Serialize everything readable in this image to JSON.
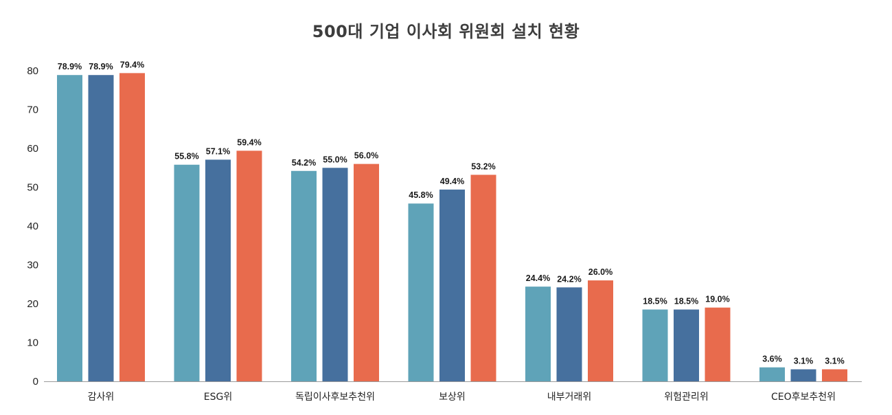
{
  "title": "500대 기업 이사회 위원회 설치 현황",
  "chart_data": {
    "type": "bar",
    "title": "500대 기업 이사회 위원회 설치 현황",
    "xlabel": "",
    "ylabel": "",
    "ylim": [
      0,
      80
    ],
    "yticks": [
      "0",
      "10",
      "20",
      "30",
      "40",
      "50",
      "60",
      "70",
      "80"
    ],
    "grid": false,
    "legend": "none",
    "categories": [
      "감사위",
      "ESG위",
      "독립이사후보추천위",
      "보상위",
      "내부거래위",
      "위험관리위",
      "CEO후보추천위"
    ],
    "series": [
      {
        "color": "#5fa3b8",
        "values": [
          78.9,
          55.8,
          54.2,
          45.8,
          24.4,
          18.5,
          3.6
        ],
        "labels": [
          "78.9%",
          "55.8%",
          "54.2%",
          "45.8%",
          "24.4%",
          "18.5%",
          "3.6%"
        ]
      },
      {
        "color": "#46709e",
        "values": [
          78.9,
          57.1,
          55.0,
          49.4,
          24.2,
          18.5,
          3.1
        ],
        "labels": [
          "78.9%",
          "57.1%",
          "55.0%",
          "49.4%",
          "24.2%",
          "18.5%",
          "3.1%"
        ]
      },
      {
        "color": "#e86b4d",
        "values": [
          79.4,
          59.4,
          56.0,
          53.2,
          26.0,
          19.0,
          3.1
        ],
        "labels": [
          "79.4%",
          "59.4%",
          "56.0%",
          "53.2%",
          "26.0%",
          "19.0%",
          "3.1%"
        ]
      }
    ]
  }
}
